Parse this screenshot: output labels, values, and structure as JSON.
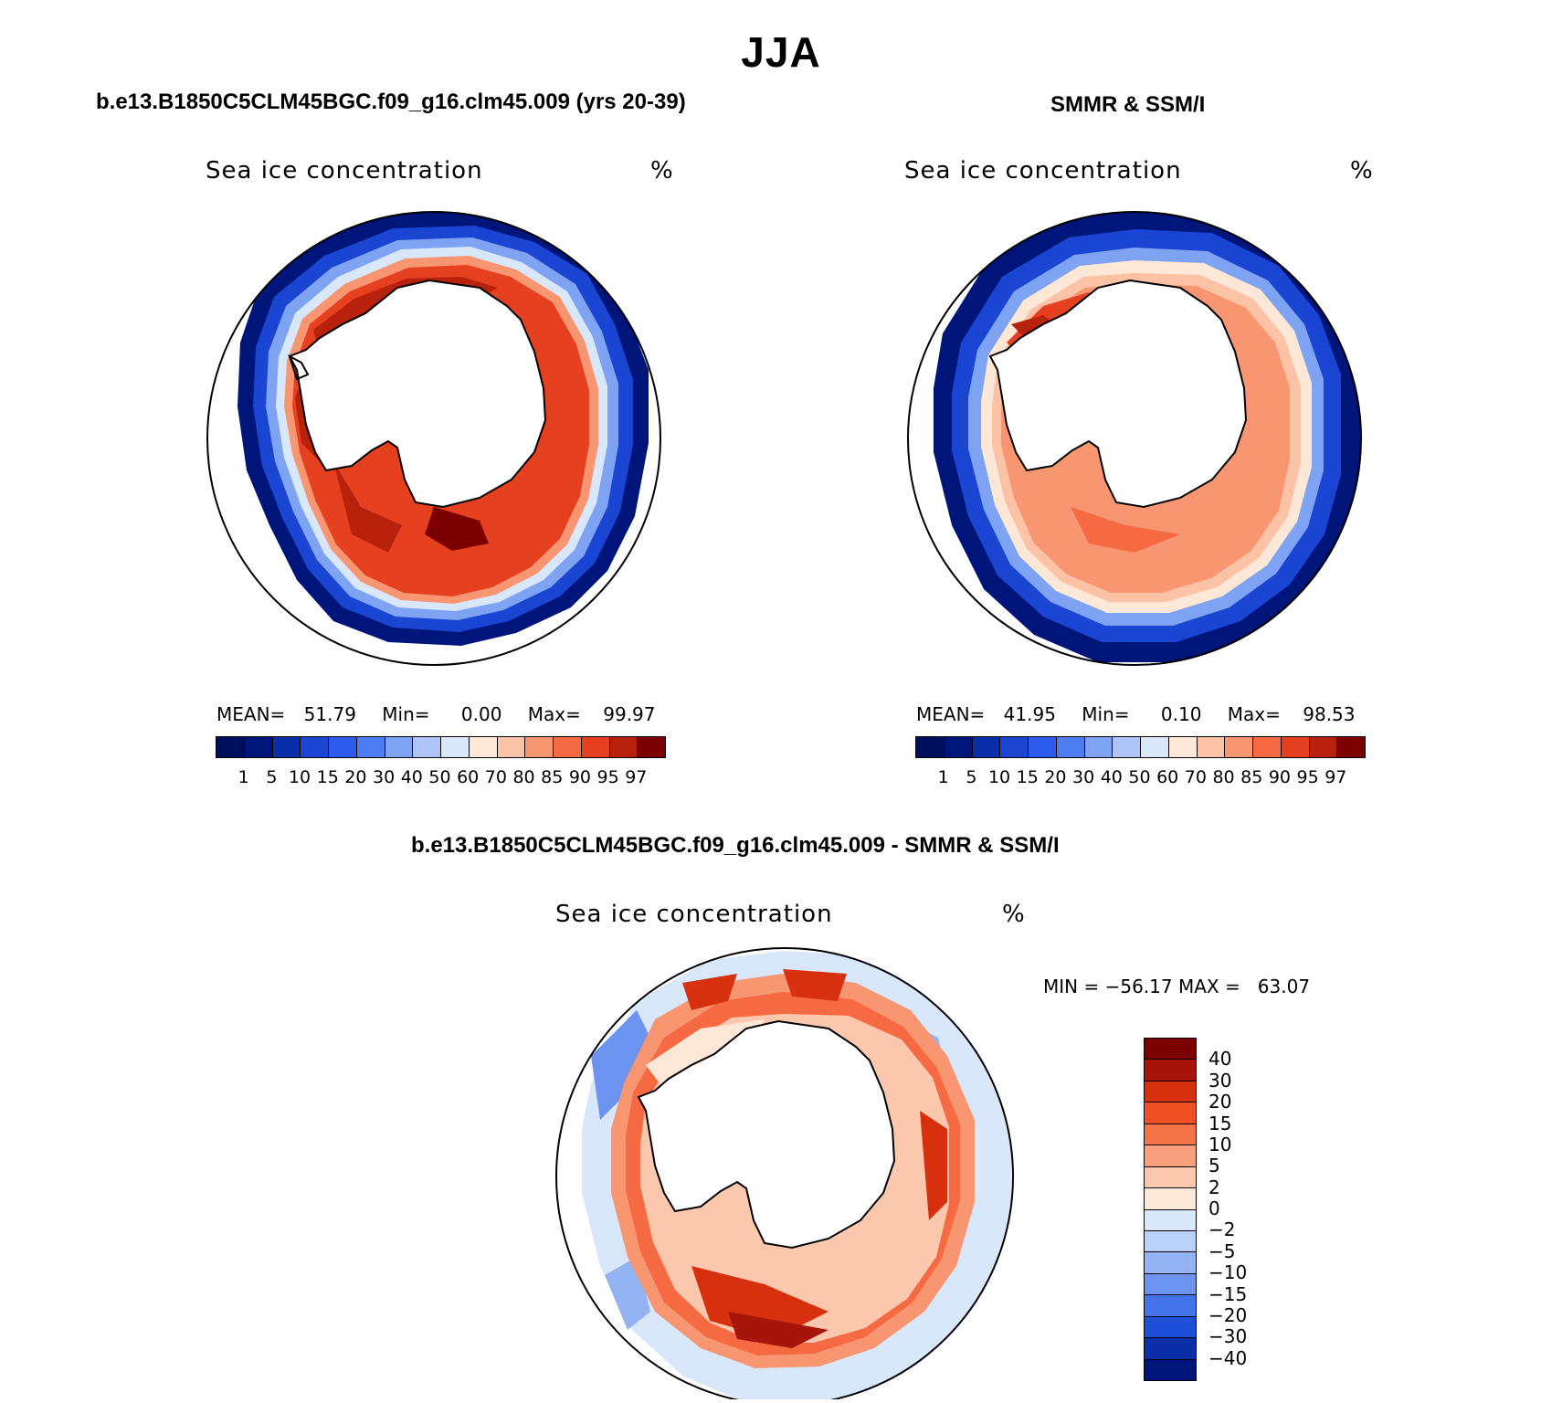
{
  "figure": {
    "title": "JJA"
  },
  "panels": [
    {
      "title": "b.e13.B1850C5CLM45BGC.f09_g16.clm45.009 (yrs 20-39)",
      "variable": "Sea ice concentration",
      "unit": "%",
      "stats": {
        "mean_label": "MEAN=",
        "mean": "51.79",
        "min_label": "Min=",
        "min": "0.00",
        "max_label": "Max=",
        "max": "99.97"
      }
    },
    {
      "title": "SMMR & SSM/I",
      "variable": "Sea ice concentration",
      "unit": "%",
      "stats": {
        "mean_label": "MEAN=",
        "mean": "41.95",
        "min_label": "Min=",
        "min": "0.10",
        "max_label": "Max=",
        "max": "98.53"
      }
    },
    {
      "title": "b.e13.B1850C5CLM45BGC.f09_g16.clm45.009 - SMMR & SSM/I",
      "variable": "Sea ice concentration",
      "unit": "%",
      "stats_text": "MIN = −56.17 MAX =   63.07"
    }
  ],
  "colorbar_concentration": {
    "labels": [
      "1",
      "5",
      "10",
      "15",
      "20",
      "30",
      "40",
      "50",
      "60",
      "70",
      "80",
      "85",
      "90",
      "95",
      "97"
    ],
    "colors": [
      "#00157a",
      "#0a2ea8",
      "#1a45d2",
      "#2b5cec",
      "#4d7df0",
      "#7ea3f2",
      "#adc5f6",
      "#d9e7fb",
      "#fde7d6",
      "#fcc2a6",
      "#f99672",
      "#f56a43",
      "#e5401f",
      "#b8210c",
      "#7d0000"
    ]
  },
  "colorbar_difference": {
    "labels": [
      "40",
      "30",
      "20",
      "15",
      "10",
      "5",
      "2",
      "0",
      "−2",
      "−5",
      "−10",
      "−15",
      "−20",
      "−30",
      "−40"
    ],
    "colors": [
      "#7d0000",
      "#a5150a",
      "#d7300f",
      "#f05023",
      "#f57349",
      "#f9a07e",
      "#fcc8ad",
      "#fde7d6",
      "#d9e7fb",
      "#b9d0f7",
      "#93b3f3",
      "#6b93ef",
      "#4573ec",
      "#1f4fd6",
      "#0b2fa8",
      "#00157a"
    ]
  }
}
